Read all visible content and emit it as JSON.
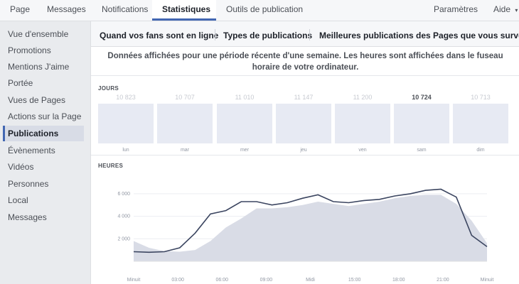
{
  "topnav": {
    "tabs": [
      {
        "label": "Page",
        "active": false
      },
      {
        "label": "Messages",
        "active": false
      },
      {
        "label": "Notifications",
        "active": false
      },
      {
        "label": "Statistiques",
        "active": true
      },
      {
        "label": "Outils de publication",
        "active": false
      }
    ],
    "settings_label": "Paramètres",
    "help_label": "Aide",
    "help_caret": "▾"
  },
  "sidebar": {
    "items": [
      {
        "label": "Vue d'ensemble",
        "active": false
      },
      {
        "label": "Promotions",
        "active": false
      },
      {
        "label": "Mentions J'aime",
        "active": false
      },
      {
        "label": "Portée",
        "active": false
      },
      {
        "label": "Vues de Pages",
        "active": false
      },
      {
        "label": "Actions sur la Page",
        "active": false
      },
      {
        "label": "Publications",
        "active": true
      },
      {
        "label": "Évènements",
        "active": false
      },
      {
        "label": "Vidéos",
        "active": false
      },
      {
        "label": "Personnes",
        "active": false
      },
      {
        "label": "Local",
        "active": false
      },
      {
        "label": "Messages",
        "active": false
      }
    ]
  },
  "subtabs": [
    {
      "label": "Quand vos fans sont en ligne",
      "active": true
    },
    {
      "label": "Types de publications",
      "active": false
    },
    {
      "label": "Meilleures publications des Pages que vous surveillez",
      "active": false
    }
  ],
  "info_text": "Données affichées pour une période récente d'une semaine. Les heures sont affichées dans le fuseau horaire de votre ordinateur.",
  "days_section": {
    "label": "JOURS",
    "days": [
      {
        "label": "lun",
        "count": "10 823",
        "highlighted": false
      },
      {
        "label": "mar",
        "count": "10 707",
        "highlighted": false
      },
      {
        "label": "mer",
        "count": "11 010",
        "highlighted": false
      },
      {
        "label": "jeu",
        "count": "11 147",
        "highlighted": false
      },
      {
        "label": "ven",
        "count": "11 200",
        "highlighted": false
      },
      {
        "label": "sam",
        "count": "10 724",
        "highlighted": true
      },
      {
        "label": "dim",
        "count": "10 713",
        "highlighted": false
      }
    ]
  },
  "hours_section": {
    "label": "HEURES"
  },
  "chart_data": {
    "type": "area",
    "x_labels": [
      "Minuit",
      "03:00",
      "06:00",
      "09:00",
      "Midi",
      "15:00",
      "18:00",
      "21:00",
      "Minuit"
    ],
    "x": [
      0,
      1,
      2,
      3,
      4,
      5,
      6,
      7,
      8,
      9,
      10,
      11,
      12,
      13,
      14,
      15,
      16,
      17,
      18,
      19,
      20,
      21,
      22,
      23
    ],
    "y_ticks": [
      "2 000",
      "4 000",
      "6 000"
    ],
    "ylim": [
      0,
      7000
    ],
    "series": [
      {
        "style": "area",
        "color": "#d9dce6",
        "values": [
          1800,
          1200,
          900,
          850,
          1000,
          1800,
          3000,
          3800,
          4700,
          4700,
          4800,
          5000,
          5300,
          5100,
          4900,
          5100,
          5300,
          5600,
          5800,
          5900,
          5900,
          5100,
          3600,
          1600
        ]
      },
      {
        "style": "line",
        "color": "#3b4560",
        "values": [
          850,
          800,
          850,
          1200,
          2500,
          4200,
          4500,
          5300,
          5300,
          5000,
          5200,
          5600,
          5900,
          5300,
          5200,
          5400,
          5500,
          5800,
          6000,
          6300,
          6400,
          5700,
          2300,
          1300
        ]
      }
    ]
  }
}
